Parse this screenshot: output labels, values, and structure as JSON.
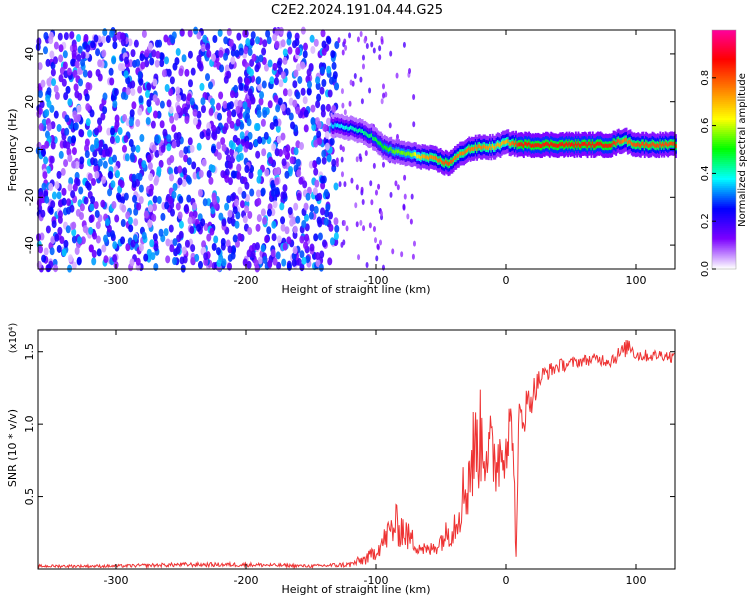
{
  "title": "C2E2.2024.191.04.44.G25",
  "chart_data": [
    {
      "type": "heatmap",
      "xlabel": "Height of straight line (km)",
      "ylabel": "Frequency (Hz)",
      "xlim": [
        -360,
        130
      ],
      "ylim": [
        -50,
        50
      ],
      "xticks": [
        -300,
        -200,
        -100,
        0,
        100
      ],
      "yticks": [
        -40,
        -20,
        0,
        20,
        40
      ],
      "colorbar": {
        "label": "Normalized spectral amplitude",
        "range": [
          0,
          1
        ],
        "ticks": [
          0.0,
          0.2,
          0.4,
          0.6,
          0.8
        ],
        "tick_labels": [
          "0.0",
          "0.2",
          "0.4",
          "0.6",
          "0.8"
        ],
        "colors": [
          "#ffffff",
          "#7b00ff",
          "#0000ff",
          "#00ffff",
          "#00ff00",
          "#ffff00",
          "#ff8000",
          "#ff0000",
          "#ff00a0"
        ]
      },
      "noise_region": {
        "x": [
          -360,
          -130
        ],
        "amplitude": 0.35
      },
      "signal_track": {
        "x": [
          -135,
          -120,
          -105,
          -95,
          -85,
          -75,
          -65,
          -55,
          -45,
          -38,
          -30,
          -20,
          -10,
          0,
          10,
          30,
          60,
          80,
          90,
          100,
          130
        ],
        "frequency": [
          10,
          9,
          6,
          1,
          -1,
          -2,
          -3,
          -4,
          -6,
          -3,
          0,
          1,
          1,
          3,
          2,
          2,
          2,
          2,
          4,
          2,
          2
        ],
        "amplitude": [
          0.35,
          0.4,
          0.45,
          0.5,
          0.55,
          0.55,
          0.7,
          0.75,
          0.8,
          0.75,
          0.75,
          0.75,
          0.7,
          0.7,
          0.85,
          0.85,
          0.85,
          0.85,
          0.75,
          0.8,
          0.8
        ]
      },
      "grid": false
    },
    {
      "type": "line",
      "xlabel": "Height of straight line (km)",
      "ylabel": "SNR (10 * v/v)",
      "y_multiplier": "(x10⁴)",
      "xlim": [
        -360,
        130
      ],
      "ylim": [
        0,
        1.65
      ],
      "xticks": [
        -300,
        -200,
        -100,
        0,
        100
      ],
      "yticks": [
        0.5,
        1.0,
        1.5
      ],
      "ytick_labels": [
        "0.5",
        "1.0",
        "1.5"
      ],
      "color": "#ee3333",
      "series": [
        {
          "x": [
            -360,
            -300,
            -250,
            -200,
            -150,
            -120,
            -105,
            -95,
            -90,
            -85,
            -80,
            -75,
            -70,
            -65,
            -60,
            -55,
            -50,
            -45,
            -40,
            -35,
            -30,
            -25,
            -20,
            -15,
            -10,
            -5,
            0,
            5,
            8,
            10,
            15,
            20,
            25,
            30,
            40,
            50,
            60,
            70,
            80,
            90,
            95,
            100,
            110,
            120,
            130
          ],
          "y": [
            0.02,
            0.02,
            0.03,
            0.03,
            0.02,
            0.03,
            0.08,
            0.18,
            0.25,
            0.3,
            0.28,
            0.22,
            0.18,
            0.15,
            0.12,
            0.15,
            0.2,
            0.25,
            0.3,
            0.45,
            0.6,
            0.8,
            0.9,
            0.85,
            0.75,
            0.8,
            0.9,
            1.0,
            0.05,
            1.05,
            1.1,
            1.2,
            1.3,
            1.35,
            1.4,
            1.42,
            1.44,
            1.45,
            1.44,
            1.5,
            1.55,
            1.48,
            1.47,
            1.48,
            1.46
          ],
          "spread": [
            0.01,
            0.01,
            0.015,
            0.015,
            0.01,
            0.02,
            0.05,
            0.08,
            0.12,
            0.15,
            0.14,
            0.1,
            0.08,
            0.06,
            0.05,
            0.06,
            0.08,
            0.1,
            0.15,
            0.2,
            0.3,
            0.35,
            0.35,
            0.3,
            0.3,
            0.28,
            0.25,
            0.2,
            0.1,
            0.18,
            0.15,
            0.12,
            0.08,
            0.06,
            0.05,
            0.04,
            0.04,
            0.04,
            0.05,
            0.06,
            0.06,
            0.05,
            0.04,
            0.04,
            0.04
          ]
        }
      ],
      "grid": false
    }
  ]
}
